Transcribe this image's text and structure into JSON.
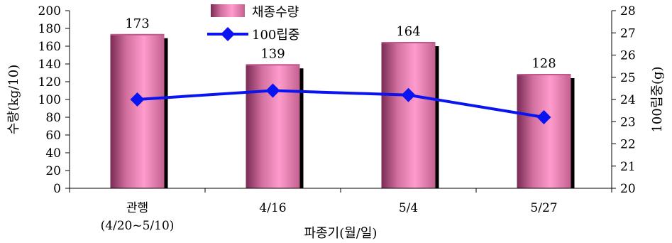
{
  "chart_data": {
    "type": "bar+line",
    "categories": [
      "관행\n(4/20~5/10)",
      "4/16",
      "5/4",
      "5/27"
    ],
    "series": [
      {
        "name": "채종수량",
        "kind": "bar",
        "axis": "left",
        "values": [
          173,
          139,
          164,
          128
        ],
        "data_labels": [
          "173",
          "139",
          "164",
          "128"
        ],
        "color": "#f080b8"
      },
      {
        "name": "100립중",
        "kind": "line",
        "axis": "right",
        "values": [
          24.0,
          24.4,
          24.2,
          23.2
        ],
        "color": "#0a14f0"
      }
    ],
    "xlabel": "파종기(월/일)",
    "ylabel_left": "수량(kg/10)",
    "ylabel_right": "100립중(g)",
    "ylim_left": [
      0,
      200
    ],
    "yticks_left": [
      "0",
      "20",
      "40",
      "60",
      "80",
      "100",
      "120",
      "140",
      "160",
      "180",
      "200"
    ],
    "ylim_right": [
      20,
      28
    ],
    "yticks_right": [
      "20",
      "21",
      "22",
      "23",
      "24",
      "25",
      "26",
      "27",
      "28"
    ],
    "grid": false,
    "legend": "top-center"
  }
}
